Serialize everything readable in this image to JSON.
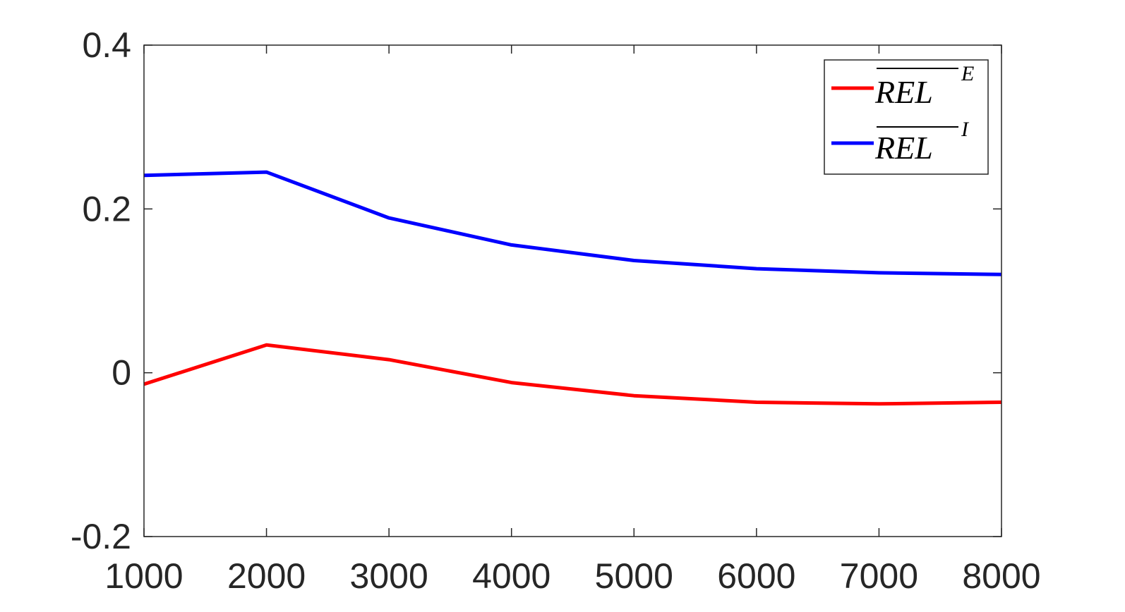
{
  "chart_data": {
    "type": "line",
    "title": "",
    "xlabel": "",
    "ylabel": "",
    "x": [
      1000,
      2000,
      3000,
      4000,
      5000,
      6000,
      7000,
      8000
    ],
    "xlim": [
      1000,
      8000
    ],
    "ylim": [
      -0.2,
      0.4
    ],
    "xticks": [
      1000,
      2000,
      3000,
      4000,
      5000,
      6000,
      7000,
      8000
    ],
    "xtick_labels": [
      "1000",
      "2000",
      "3000",
      "4000",
      "5000",
      "6000",
      "7000",
      "8000"
    ],
    "yticks": [
      -0.2,
      0,
      0.2,
      0.4
    ],
    "ytick_labels": [
      "-0.2",
      "0",
      "0.2",
      "0.4"
    ],
    "grid": false,
    "legend_position": "top-right",
    "series": [
      {
        "name": "REL",
        "name_superscript": "E",
        "color": "#ff0000",
        "values": [
          -0.014,
          0.034,
          0.016,
          -0.012,
          -0.028,
          -0.036,
          -0.038,
          -0.036
        ]
      },
      {
        "name": "REL",
        "name_superscript": "I",
        "color": "#0000ff",
        "values": [
          0.241,
          0.245,
          0.189,
          0.156,
          0.137,
          0.127,
          0.122,
          0.12
        ]
      }
    ]
  }
}
